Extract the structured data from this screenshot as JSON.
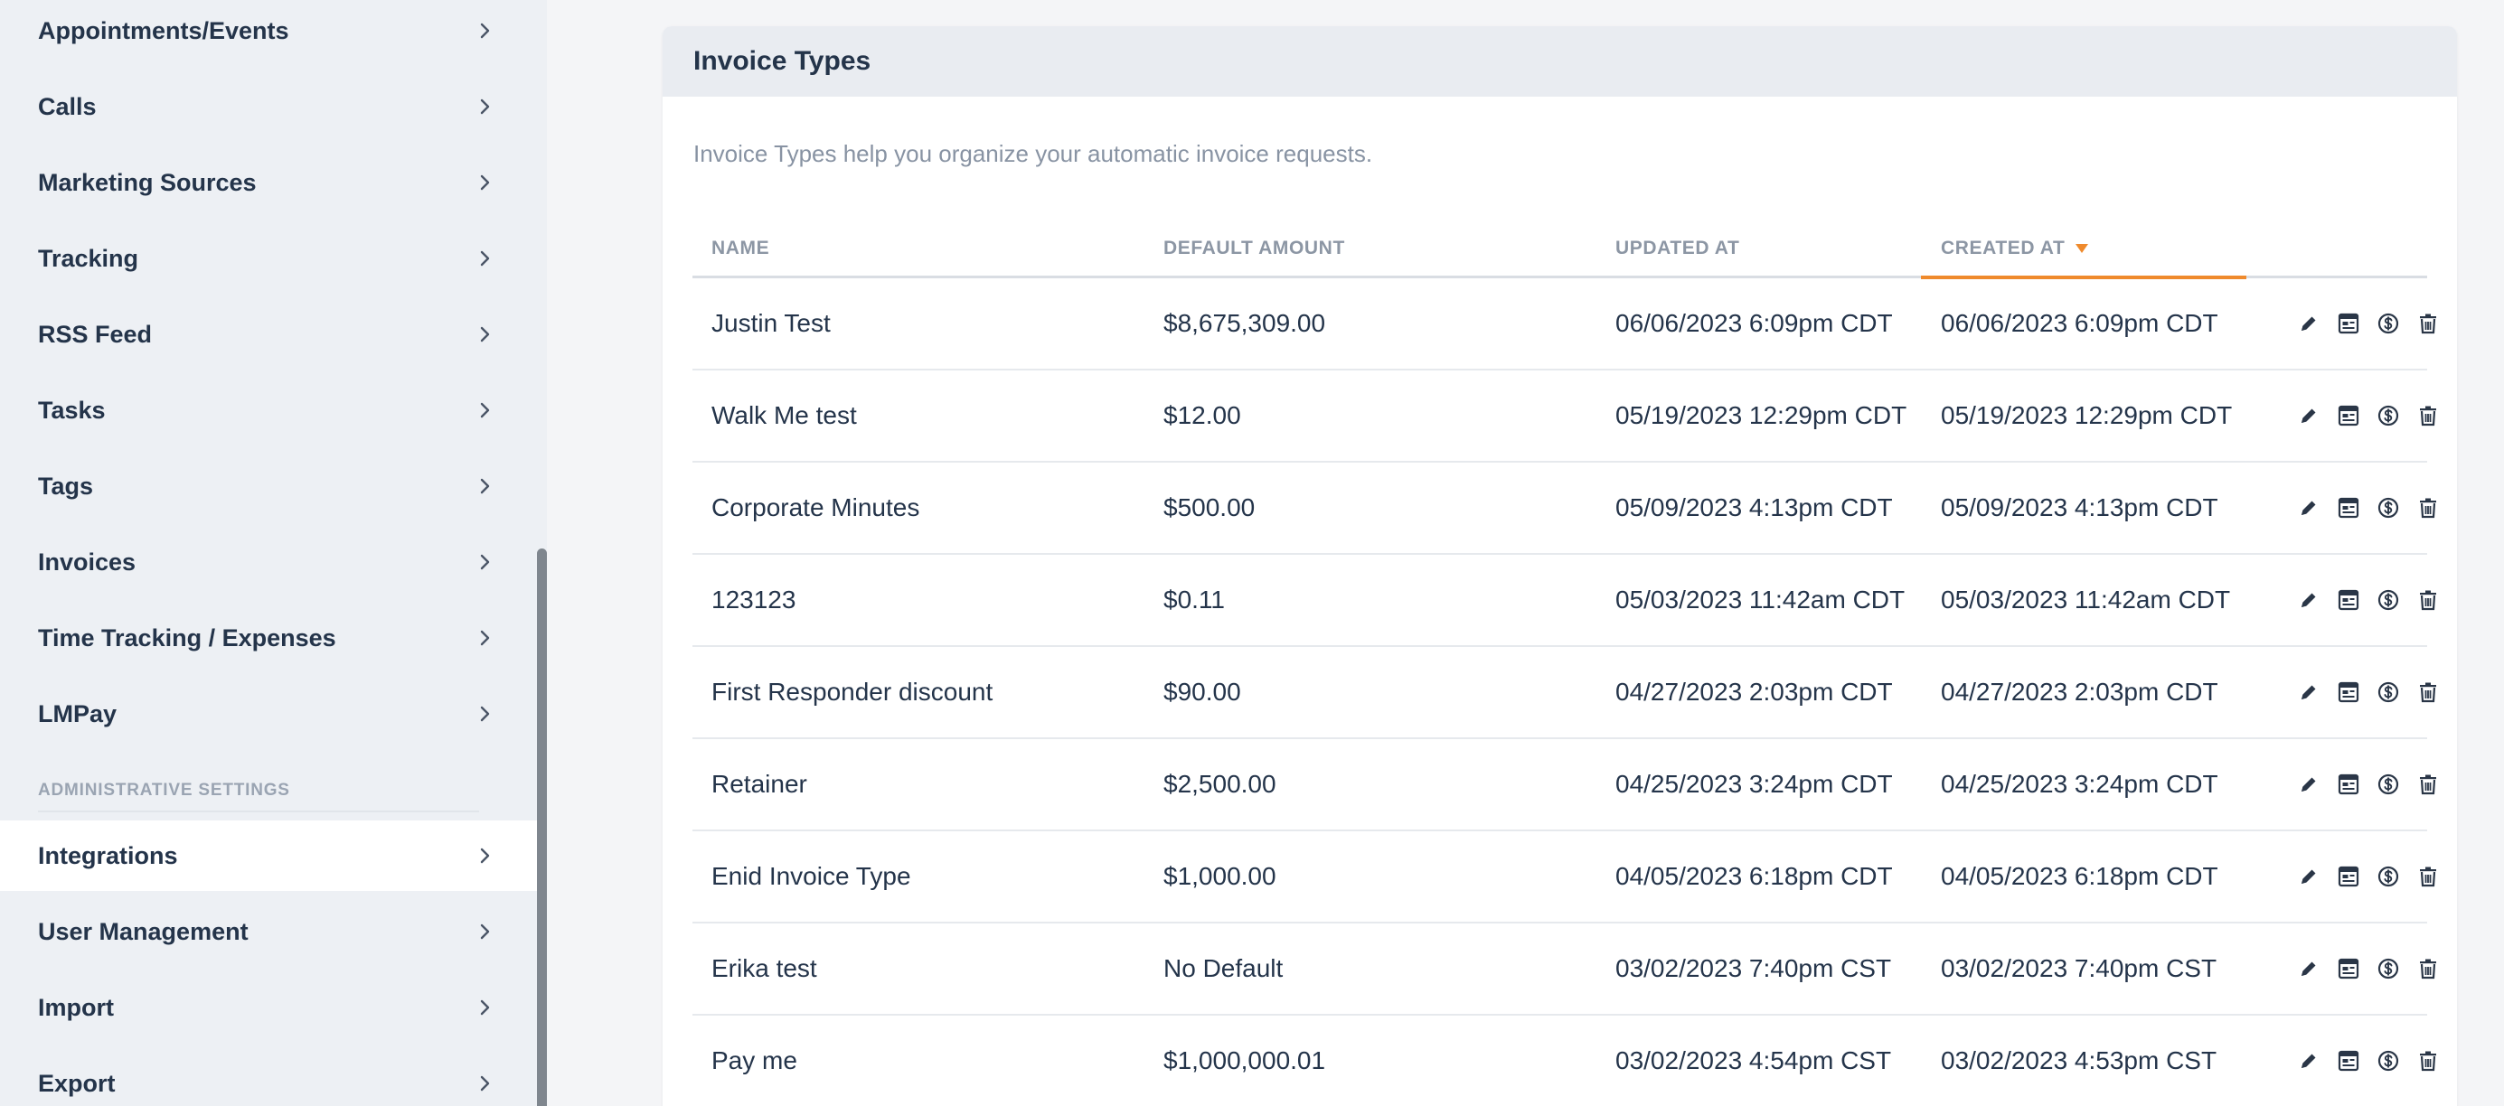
{
  "sidebar": {
    "items_top": [
      {
        "label": "Appointments/Events"
      },
      {
        "label": "Calls"
      },
      {
        "label": "Marketing Sources"
      },
      {
        "label": "Tracking"
      },
      {
        "label": "RSS Feed"
      },
      {
        "label": "Tasks"
      },
      {
        "label": "Tags"
      },
      {
        "label": "Invoices"
      },
      {
        "label": "Time Tracking / Expenses"
      },
      {
        "label": "LMPay"
      }
    ],
    "section_label": "ADMINISTRATIVE SETTINGS",
    "items_admin": [
      {
        "label": "Integrations",
        "active": true
      },
      {
        "label": "User Management"
      },
      {
        "label": "Import"
      },
      {
        "label": "Export"
      }
    ]
  },
  "card": {
    "title": "Invoice Types",
    "description": "Invoice Types help you organize your automatic invoice requests."
  },
  "table": {
    "columns": {
      "name": "NAME",
      "default_amount": "DEFAULT AMOUNT",
      "updated_at": "UPDATED AT",
      "created_at": "CREATED AT"
    },
    "sorted_by": "created_at",
    "sort_direction": "desc",
    "accent_color": "#ef8a2c",
    "rows": [
      {
        "name": "Justin Test",
        "default_amount": "$8,675,309.00",
        "updated_at": "06/06/2023 6:09pm CDT",
        "created_at": "06/06/2023 6:09pm CDT"
      },
      {
        "name": "Walk Me test",
        "default_amount": "$12.00",
        "updated_at": "05/19/2023 12:29pm CDT",
        "created_at": "05/19/2023 12:29pm CDT"
      },
      {
        "name": "Corporate Minutes",
        "default_amount": "$500.00",
        "updated_at": "05/09/2023 4:13pm CDT",
        "created_at": "05/09/2023 4:13pm CDT"
      },
      {
        "name": "123123",
        "default_amount": "$0.11",
        "updated_at": "05/03/2023 11:42am CDT",
        "created_at": "05/03/2023 11:42am CDT"
      },
      {
        "name": "First Responder discount",
        "default_amount": "$90.00",
        "updated_at": "04/27/2023 2:03pm CDT",
        "created_at": "04/27/2023 2:03pm CDT"
      },
      {
        "name": "Retainer",
        "default_amount": "$2,500.00",
        "updated_at": "04/25/2023 3:24pm CDT",
        "created_at": "04/25/2023 3:24pm CDT"
      },
      {
        "name": "Enid Invoice Type",
        "default_amount": "$1,000.00",
        "updated_at": "04/05/2023 6:18pm CDT",
        "created_at": "04/05/2023 6:18pm CDT"
      },
      {
        "name": "Erika test",
        "default_amount": "No Default",
        "updated_at": "03/02/2023 7:40pm CST",
        "created_at": "03/02/2023 7:40pm CST"
      },
      {
        "name": "Pay me",
        "default_amount": "$1,000,000.01",
        "updated_at": "03/02/2023 4:54pm CST",
        "created_at": "03/02/2023 4:53pm CST"
      }
    ],
    "row_actions": [
      "edit-icon",
      "invoice-template-icon",
      "dollar-icon",
      "trash-icon"
    ]
  }
}
